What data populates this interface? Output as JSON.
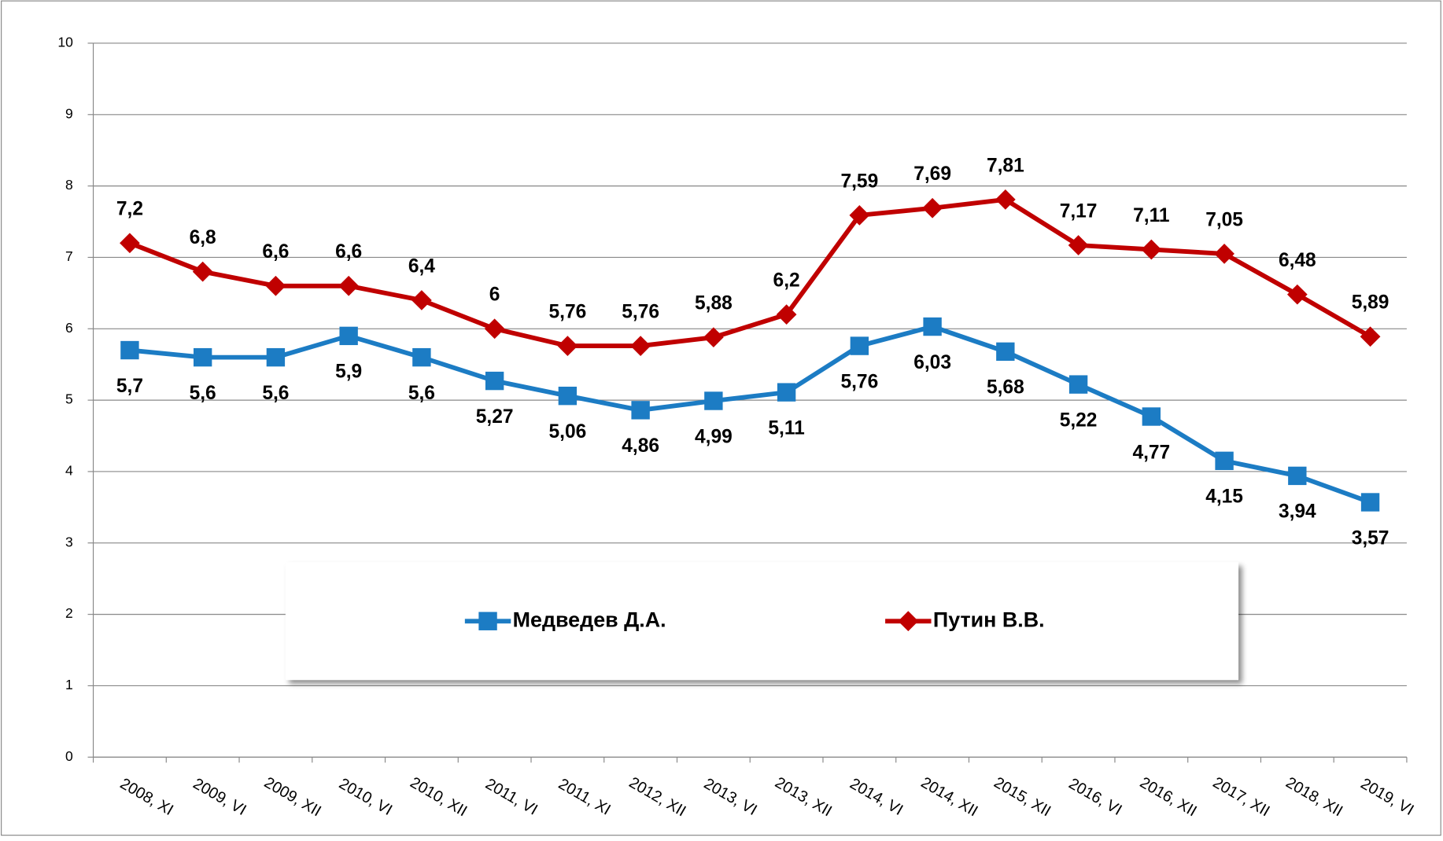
{
  "chart_data": {
    "type": "line",
    "categories": [
      "2008, XI",
      "2009, VI",
      "2009, XII",
      "2010, VI",
      "2010, XII",
      "2011, VI",
      "2011, XI",
      "2012, XII",
      "2013, VI",
      "2013, XII",
      "2014, VI",
      "2014, XII",
      "2015, XII",
      "2016, VI",
      "2016, XII",
      "2017, XII",
      "2018, XII",
      "2019, VI"
    ],
    "series": [
      {
        "name": "Медведев Д.А.",
        "color": "#1c7cc4",
        "marker": "square",
        "values": [
          5.7,
          5.6,
          5.6,
          5.9,
          5.6,
          5.27,
          5.06,
          4.86,
          4.99,
          5.11,
          5.76,
          6.03,
          5.68,
          5.22,
          4.77,
          4.15,
          3.94,
          3.57
        ],
        "value_labels": [
          "5,7",
          "5,6",
          "5,6",
          "5,9",
          "5,6",
          "5,27",
          "5,06",
          "4,86",
          "4,99",
          "5,11",
          "5,76",
          "6,03",
          "5,68",
          "5,22",
          "4,77",
          "4,15",
          "3,94",
          "3,57"
        ]
      },
      {
        "name": "Путин В.В.",
        "color": "#c00000",
        "marker": "diamond",
        "values": [
          7.2,
          6.8,
          6.6,
          6.6,
          6.4,
          6,
          5.76,
          5.76,
          5.88,
          6.2,
          7.59,
          7.69,
          7.81,
          7.17,
          7.11,
          7.05,
          6.48,
          5.89
        ],
        "value_labels": [
          "7,2",
          "6,8",
          "6,6",
          "6,6",
          "6,4",
          "6",
          "5,76",
          "5,76",
          "5,88",
          "6,2",
          "7,59",
          "7,69",
          "7,81",
          "7,17",
          "7,11",
          "7,05",
          "6,48",
          "5,89"
        ]
      }
    ],
    "ylim": [
      0,
      10
    ],
    "yticks": [
      0,
      1,
      2,
      3,
      4,
      5,
      6,
      7,
      8,
      9,
      10
    ],
    "grid": true
  }
}
